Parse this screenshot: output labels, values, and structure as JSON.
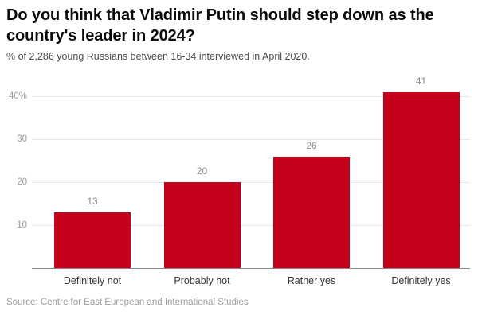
{
  "header": {
    "title": "Do you think that Vladimir Putin should step down as the country's leader in 2024?",
    "subtitle": "% of 2,286 young Russians between 16-34 interviewed in April 2020."
  },
  "footer": {
    "source": "Source: Centre for East European and International Studies"
  },
  "colors": {
    "bar": "#c4021c",
    "grid": "#e8e8e8",
    "baseline": "#8a8a8a",
    "ytick_label": "#9a9a9a",
    "value_label": "#8c8c8c",
    "category_label": "#333333",
    "title": "#0b0b0b",
    "subtitle": "#4a4a4a",
    "source": "#9c9c9c",
    "background": "#ffffff"
  },
  "chart_data": {
    "type": "bar",
    "title": "Do you think that Vladimir Putin should step down as the country's leader in 2024?",
    "subtitle": "% of 2,286 young Russians between 16-34 interviewed in April 2020.",
    "source": "Source: Centre for East European and International Studies",
    "categories": [
      "Definitely not",
      "Probably not",
      "Rather yes",
      "Definitely yes"
    ],
    "values": [
      13,
      20,
      26,
      41
    ],
    "value_labels_shown": true,
    "xlabel": "",
    "ylabel": "",
    "ylim": [
      0,
      44
    ],
    "yticks": [
      10,
      20,
      30,
      40
    ],
    "ytick_labels": [
      "10",
      "20",
      "30",
      "40%"
    ],
    "grid": true,
    "legend": false,
    "bar_color": "#c4021c"
  }
}
